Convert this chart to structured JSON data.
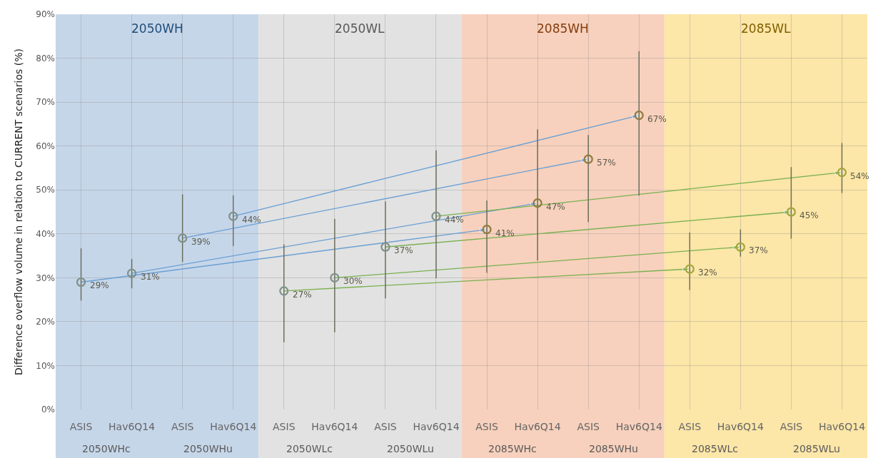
{
  "chart_data": {
    "type": "scatter",
    "ylabel": "Difference overflow volume in relation to CURRENT scenarios (%)",
    "categories": [
      "ASIS",
      "Hav6Q14",
      "ASIS",
      "Hav6Q14",
      "ASIS",
      "Hav6Q14",
      "ASIS",
      "Hav6Q14",
      "ASIS",
      "Hav6Q14",
      "ASIS",
      "Hav6Q14",
      "ASIS",
      "Hav6Q14",
      "ASIS",
      "Hav6Q14"
    ],
    "ylim": [
      0,
      90
    ],
    "yticks": [
      {
        "value": 0,
        "label": "0%"
      },
      {
        "value": 10,
        "label": "10%"
      },
      {
        "value": 20,
        "label": "20%"
      },
      {
        "value": 30,
        "label": "30%"
      },
      {
        "value": 40,
        "label": "40%"
      },
      {
        "value": 50,
        "label": "50%"
      },
      {
        "value": 60,
        "label": "60%"
      },
      {
        "value": 70,
        "label": "70%"
      },
      {
        "value": 80,
        "label": "80%"
      },
      {
        "value": 90,
        "label": "90%"
      }
    ],
    "grid": true,
    "marker": "circle",
    "series": [
      {
        "values": [
          29,
          31,
          39,
          44,
          27,
          30,
          37,
          44,
          41,
          47,
          57,
          67,
          32,
          37,
          45,
          54
        ],
        "colors": [
          "#7f9189",
          "#7f9189",
          "#7f9189",
          "#7f9189",
          "#7f9189",
          "#7f9189",
          "#7f9189",
          "#7f9189",
          "#8c7a3e",
          "#8c7a3e",
          "#8c7a3e",
          "#8c7a3e",
          "#a1a63c",
          "#a1a63c",
          "#a1a63c",
          "#a1a63c"
        ],
        "value_labels": [
          "29%",
          "31%",
          "39%",
          "44%",
          "27%",
          "30%",
          "37%",
          "44%",
          "41%",
          "47%",
          "57%",
          "67%",
          "32%",
          "37%",
          "45%",
          "54%"
        ],
        "errors": [
          [
            24.8,
            36.7
          ],
          [
            27.6,
            34.3
          ],
          [
            33.6,
            49.0
          ],
          [
            37.2,
            48.8
          ],
          [
            15.3,
            37.6
          ],
          [
            17.6,
            43.4
          ],
          [
            25.3,
            47.4
          ],
          [
            29.9,
            59.0
          ],
          [
            31.1,
            47.6
          ],
          [
            33.9,
            63.8
          ],
          [
            42.7,
            62.5
          ],
          [
            48.7,
            81.6
          ],
          [
            27.2,
            40.3
          ],
          [
            34.8,
            41.0
          ],
          [
            38.9,
            55.2
          ],
          [
            49.3,
            60.7
          ]
        ]
      },
      {
        "type": "line",
        "values": [
          29,
          null,
          null,
          null,
          null,
          null,
          null,
          null,
          41,
          null,
          null,
          null,
          null,
          null,
          null,
          null
        ],
        "color": "#6a9fd4",
        "marker": "triangle"
      },
      {
        "type": "line",
        "values": [
          null,
          31,
          null,
          null,
          null,
          null,
          null,
          null,
          null,
          47,
          null,
          null,
          null,
          null,
          null,
          null
        ],
        "color": "#6a9fd4",
        "marker": "triangle"
      },
      {
        "type": "line",
        "values": [
          null,
          null,
          39,
          null,
          null,
          null,
          null,
          null,
          null,
          null,
          57,
          null,
          null,
          null,
          null,
          null
        ],
        "color": "#6a9fd4",
        "marker": "triangle"
      },
      {
        "type": "line",
        "values": [
          null,
          null,
          null,
          44,
          null,
          null,
          null,
          null,
          null,
          null,
          null,
          67,
          null,
          null,
          null,
          null
        ],
        "color": "#6a9fd4",
        "marker": "triangle"
      },
      {
        "type": "line",
        "values": [
          null,
          null,
          null,
          null,
          27,
          null,
          null,
          null,
          null,
          null,
          null,
          null,
          32,
          null,
          null,
          null
        ],
        "color": "#78b04f",
        "marker": "triangle"
      },
      {
        "type": "line",
        "values": [
          null,
          null,
          null,
          null,
          null,
          30,
          null,
          null,
          null,
          null,
          null,
          null,
          null,
          37,
          null,
          null
        ],
        "color": "#78b04f",
        "marker": "triangle"
      },
      {
        "type": "line",
        "values": [
          null,
          null,
          null,
          null,
          null,
          null,
          37,
          null,
          null,
          null,
          null,
          null,
          null,
          null,
          45,
          null
        ],
        "color": "#78b04f",
        "marker": "triangle"
      },
      {
        "type": "line",
        "values": [
          null,
          null,
          null,
          null,
          null,
          null,
          null,
          44,
          null,
          null,
          null,
          null,
          null,
          null,
          null,
          54
        ],
        "color": "#78b04f",
        "marker": "triangle"
      }
    ],
    "annotations": [
      "2050WH",
      "2050WL",
      "2085WH",
      "2085WL",
      "2050WHc",
      "2050WHu",
      "2050WLc",
      "2050WLu",
      "2085WHc",
      "2085WHu",
      "2085WLc",
      "2085WLu"
    ]
  }
}
